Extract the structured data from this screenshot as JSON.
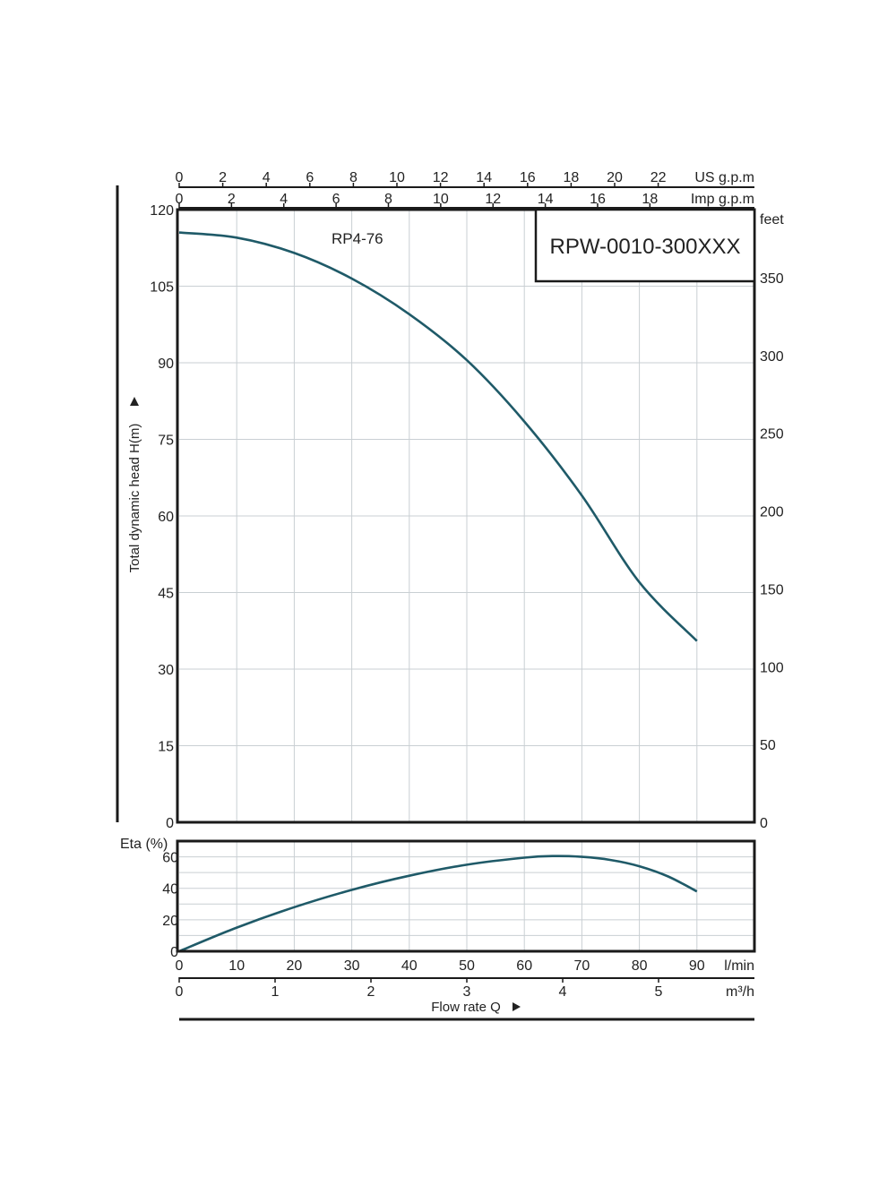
{
  "chart_data": [
    {
      "type": "line",
      "title": "RPW-0010-300XXX",
      "ylabel": "Total dynamic head H(m)",
      "xlabel": "",
      "x_unit": "l/min",
      "xlim": [
        0,
        100
      ],
      "ylim": [
        0,
        120
      ],
      "y_ticks": [
        "0",
        "15",
        "30",
        "45",
        "60",
        "75",
        "90",
        "105",
        "120"
      ],
      "y2_unit": "feet",
      "y2_ticks": [
        {
          "label": "0",
          "value": 0
        },
        {
          "label": "50",
          "value": 50
        },
        {
          "label": "100",
          "value": 100
        },
        {
          "label": "150",
          "value": 150
        },
        {
          "label": "200",
          "value": 200
        },
        {
          "label": "250",
          "value": 250
        },
        {
          "label": "300",
          "value": 300
        },
        {
          "label": "350",
          "value": 350
        }
      ],
      "x2_axes": [
        {
          "unit": "US g.p.m",
          "ticks": [
            "0",
            "2",
            "4",
            "6",
            "8",
            "10",
            "12",
            "14",
            "16",
            "18",
            "20",
            "22"
          ],
          "lpm_per_unit": 3.785
        },
        {
          "unit": "Imp g.p.m",
          "ticks": [
            "0",
            "2",
            "4",
            "6",
            "8",
            "10",
            "12",
            "14",
            "16",
            "18"
          ],
          "lpm_per_unit": 4.546
        }
      ],
      "grid": true,
      "series": [
        {
          "name": "RP4-76",
          "x": [
            0,
            10,
            20,
            30,
            40,
            50,
            60,
            70,
            80,
            90
          ],
          "y": [
            115.5,
            114.5,
            111.5,
            106.5,
            99.5,
            90.5,
            78.5,
            64,
            47,
            35.5
          ]
        }
      ]
    },
    {
      "type": "line",
      "ylabel": "Eta (%)",
      "xlabel": "Flow rate Q",
      "xlim": [
        0,
        100
      ],
      "ylim": [
        0,
        70
      ],
      "y_ticks": [
        "0",
        "20",
        "40",
        "60"
      ],
      "x_ticks": [
        "0",
        "10",
        "20",
        "30",
        "40",
        "50",
        "60",
        "70",
        "80",
        "90"
      ],
      "x_unit": "l/min",
      "x2_axis": {
        "unit": "m³/h",
        "ticks": [
          "0",
          "1",
          "2",
          "3",
          "4",
          "5"
        ],
        "lpm_per_unit": 16.667
      },
      "grid": true,
      "series": [
        {
          "x": [
            0,
            10,
            20,
            30,
            40,
            50,
            60,
            65,
            70,
            75,
            80,
            85,
            90
          ],
          "y": [
            0,
            15,
            28,
            39,
            48,
            55,
            59.5,
            60.5,
            60,
            58,
            54,
            47.5,
            38
          ]
        }
      ]
    }
  ]
}
